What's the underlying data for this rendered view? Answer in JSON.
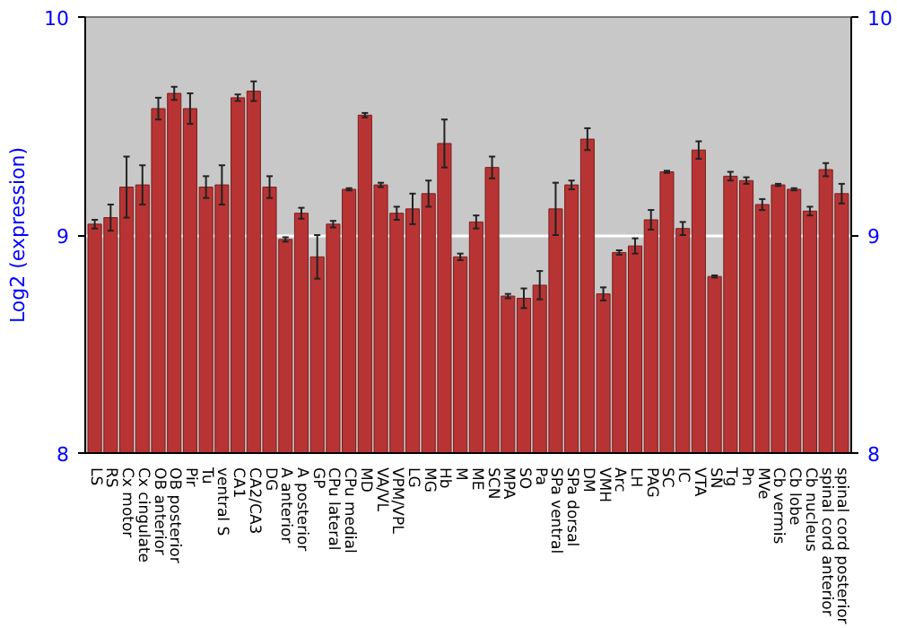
{
  "chart_data": {
    "type": "bar",
    "ylabel": "Log2 (expression)",
    "categories": [
      "LS",
      "RS",
      "Cx motor",
      "Cx cingulate",
      "OB anterior",
      "OB posterior",
      "Pir",
      "Tu",
      "ventral S",
      "CA1",
      "CA2/CA3",
      "DG",
      "A anterior",
      "A posterior",
      "GP",
      "CPu lateral",
      "CPu medial",
      "MD",
      "VA/VL",
      "VPM/VPL",
      "LG",
      "MG",
      "Hb",
      "M",
      "ME",
      "SCN",
      "MPA",
      "SO",
      "Pa",
      "SPa ventral",
      "SPa dorsal",
      "DM",
      "VMH",
      "Arc",
      "LH",
      "PAG",
      "SC",
      "IC",
      "VTA",
      "SN",
      "Tg",
      "Pn",
      "MVe",
      "Cb vermis",
      "Cb lobe",
      "Cb nucleus",
      "spinal cord anterior",
      "spinal cord posterior"
    ],
    "values": [
      9.05,
      9.08,
      9.22,
      9.23,
      9.58,
      9.65,
      9.58,
      9.22,
      9.23,
      9.63,
      9.66,
      9.22,
      8.98,
      9.1,
      8.9,
      9.05,
      9.21,
      9.55,
      9.23,
      9.1,
      9.12,
      9.19,
      9.42,
      8.9,
      9.06,
      9.31,
      8.72,
      8.71,
      8.77,
      9.12,
      9.23,
      9.44,
      8.73,
      8.92,
      8.95,
      9.07,
      9.29,
      9.03,
      9.39,
      8.81,
      9.27,
      9.25,
      9.14,
      9.23,
      9.21,
      9.11,
      9.3,
      9.19
    ],
    "errors": [
      0.02,
      0.06,
      0.14,
      0.09,
      0.05,
      0.03,
      0.07,
      0.05,
      0.09,
      0.015,
      0.045,
      0.05,
      0.01,
      0.025,
      0.1,
      0.015,
      0.005,
      0.01,
      0.01,
      0.03,
      0.07,
      0.06,
      0.11,
      0.015,
      0.03,
      0.05,
      0.01,
      0.045,
      0.065,
      0.12,
      0.02,
      0.05,
      0.03,
      0.01,
      0.035,
      0.045,
      0.005,
      0.03,
      0.04,
      0.005,
      0.02,
      0.015,
      0.025,
      0.005,
      0.005,
      0.02,
      0.03,
      0.045
    ],
    "color": "#b83434",
    "ylim": [
      8,
      10
    ],
    "yticks": [
      8,
      9,
      10
    ],
    "y2lim": [
      8,
      10
    ],
    "y2ticks": [
      8,
      9,
      10
    ],
    "grid": "y"
  }
}
